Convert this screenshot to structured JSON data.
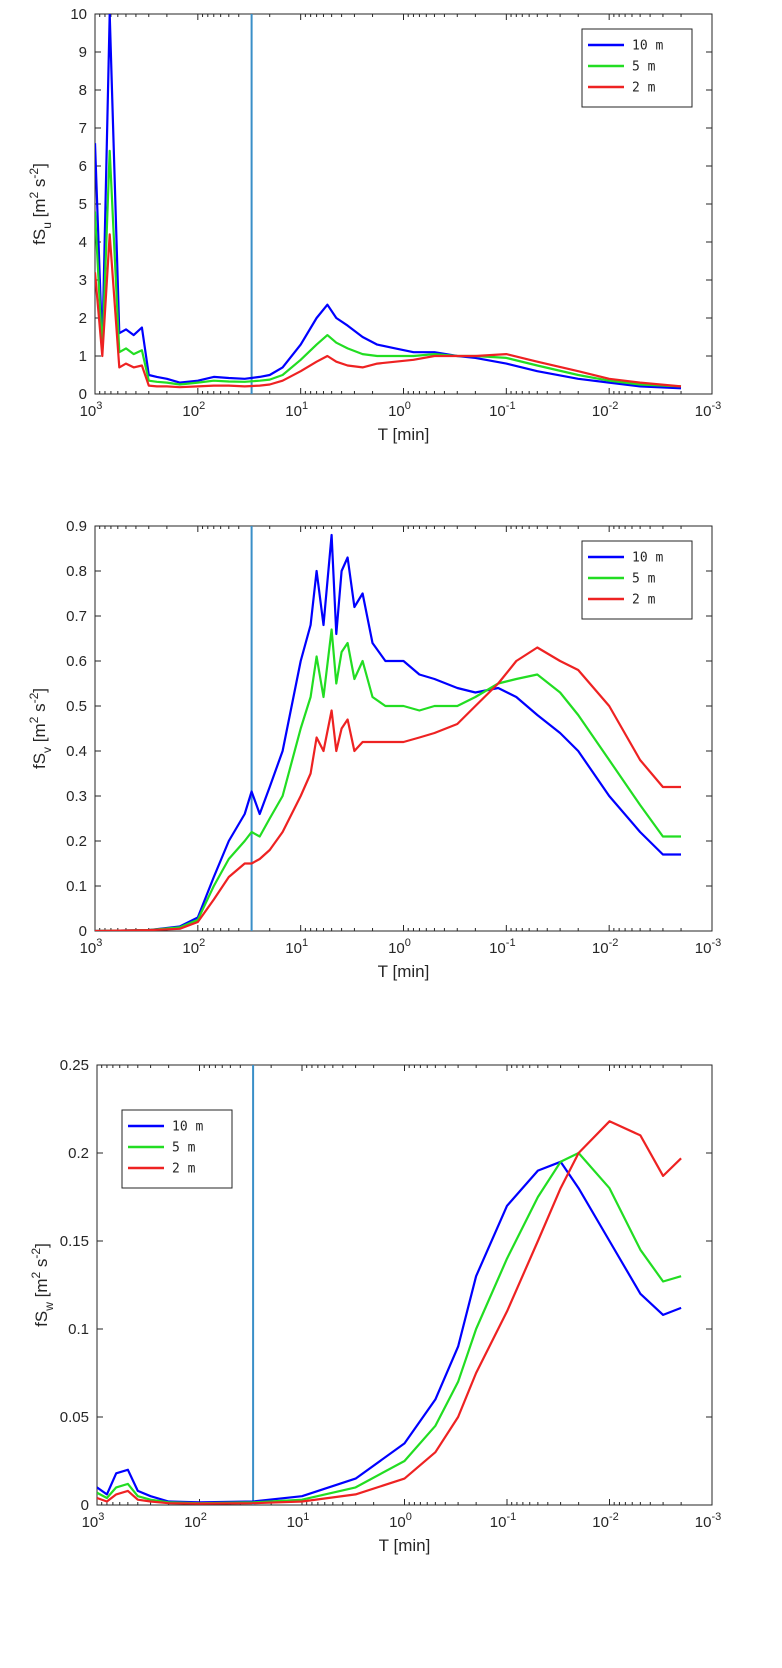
{
  "chart_data": [
    {
      "type": "line",
      "xlabel": "T [min]",
      "ylabel": "fS_u [m^2 s^-2]",
      "ylabel_parts": {
        "base": "fS",
        "sub": "u",
        "units_open": " [m",
        "sup1": "2",
        "mid": " s",
        "sup2": "-2",
        "units_close": "]"
      },
      "x_scale": "log",
      "x_reversed": true,
      "xlim": [
        1000,
        0.001
      ],
      "ylim": [
        0,
        10
      ],
      "yticks": [
        0,
        1,
        2,
        3,
        4,
        5,
        6,
        7,
        8,
        9,
        10
      ],
      "ytick_labels": [
        "0",
        "1",
        "2",
        "3",
        "4",
        "5",
        "6",
        "7",
        "8",
        "9",
        "10"
      ],
      "xticks": [
        {
          "value": 1000,
          "base": "10",
          "exp": "3"
        },
        {
          "value": 100,
          "base": "10",
          "exp": "2"
        },
        {
          "value": 10,
          "base": "10",
          "exp": "1"
        },
        {
          "value": 1,
          "base": "10",
          "exp": "0"
        },
        {
          "value": 0.1,
          "base": "10",
          "exp": "-1"
        },
        {
          "value": 0.01,
          "base": "10",
          "exp": "-2"
        },
        {
          "value": 0.001,
          "base": "10",
          "exp": "-3"
        }
      ],
      "vline_x": 30,
      "legend_position": "top-right",
      "grid": false,
      "series": [
        {
          "name": "10 m",
          "color": "#0000ff",
          "x": [
            1000,
            850,
            720,
            580,
            500,
            420,
            350,
            300,
            250,
            200,
            150,
            100,
            70,
            50,
            35,
            25,
            20,
            15,
            10,
            7,
            5.5,
            4.5,
            3.5,
            2.5,
            1.8,
            1.2,
            0.8,
            0.5,
            0.3,
            0.2,
            0.1,
            0.05,
            0.02,
            0.01,
            0.005,
            0.002
          ],
          "y": [
            6.6,
            1.2,
            10.0,
            1.6,
            1.7,
            1.55,
            1.75,
            0.5,
            0.45,
            0.4,
            0.3,
            0.35,
            0.45,
            0.42,
            0.4,
            0.45,
            0.5,
            0.7,
            1.3,
            2.0,
            2.35,
            2.0,
            1.8,
            1.5,
            1.3,
            1.2,
            1.1,
            1.1,
            1.0,
            0.95,
            0.8,
            0.6,
            0.4,
            0.3,
            0.2,
            0.15
          ]
        },
        {
          "name": "5 m",
          "color": "#22dd22",
          "x": [
            1000,
            850,
            720,
            580,
            500,
            420,
            350,
            300,
            250,
            200,
            150,
            100,
            70,
            50,
            35,
            25,
            20,
            15,
            10,
            7,
            5.5,
            4.5,
            3.5,
            2.5,
            1.8,
            1.2,
            0.8,
            0.5,
            0.3,
            0.2,
            0.1,
            0.05,
            0.02,
            0.01,
            0.005,
            0.002
          ],
          "y": [
            4.8,
            1.1,
            6.4,
            1.1,
            1.2,
            1.05,
            1.15,
            0.35,
            0.32,
            0.3,
            0.25,
            0.3,
            0.35,
            0.33,
            0.32,
            0.35,
            0.38,
            0.5,
            0.9,
            1.3,
            1.55,
            1.35,
            1.2,
            1.05,
            1.0,
            1.0,
            1.0,
            1.05,
            1.0,
            1.0,
            0.95,
            0.75,
            0.5,
            0.35,
            0.25,
            0.2
          ]
        },
        {
          "name": "2 m",
          "color": "#ee2222",
          "x": [
            1000,
            850,
            720,
            580,
            500,
            420,
            350,
            300,
            250,
            200,
            150,
            100,
            70,
            50,
            35,
            25,
            20,
            15,
            10,
            7,
            5.5,
            4.5,
            3.5,
            2.5,
            1.8,
            1.2,
            0.8,
            0.5,
            0.3,
            0.2,
            0.1,
            0.05,
            0.02,
            0.01,
            0.005,
            0.002
          ],
          "y": [
            3.2,
            1.0,
            4.2,
            0.7,
            0.8,
            0.7,
            0.75,
            0.22,
            0.2,
            0.2,
            0.18,
            0.2,
            0.22,
            0.22,
            0.2,
            0.22,
            0.25,
            0.35,
            0.6,
            0.85,
            1.0,
            0.85,
            0.75,
            0.7,
            0.8,
            0.85,
            0.9,
            1.0,
            1.0,
            1.0,
            1.05,
            0.85,
            0.6,
            0.4,
            0.3,
            0.2
          ]
        }
      ]
    },
    {
      "type": "line",
      "xlabel": "T [min]",
      "ylabel": "fS_v [m^2 s^-2]",
      "ylabel_parts": {
        "base": "fS",
        "sub": "v",
        "units_open": " [m",
        "sup1": "2",
        "mid": " s",
        "sup2": "-2",
        "units_close": "]"
      },
      "x_scale": "log",
      "x_reversed": true,
      "xlim": [
        1000,
        0.001
      ],
      "ylim": [
        0,
        0.9
      ],
      "yticks": [
        0,
        0.1,
        0.2,
        0.3,
        0.4,
        0.5,
        0.6,
        0.7,
        0.8,
        0.9
      ],
      "ytick_labels": [
        "0",
        "0.1",
        "0.2",
        "0.3",
        "0.4",
        "0.5",
        "0.6",
        "0.7",
        "0.8",
        "0.9"
      ],
      "xticks": [
        {
          "value": 1000,
          "base": "10",
          "exp": "3"
        },
        {
          "value": 100,
          "base": "10",
          "exp": "2"
        },
        {
          "value": 10,
          "base": "10",
          "exp": "1"
        },
        {
          "value": 1,
          "base": "10",
          "exp": "0"
        },
        {
          "value": 0.1,
          "base": "10",
          "exp": "-1"
        },
        {
          "value": 0.01,
          "base": "10",
          "exp": "-2"
        },
        {
          "value": 0.001,
          "base": "10",
          "exp": "-3"
        }
      ],
      "vline_x": 30,
      "legend_position": "top-right",
      "grid": false,
      "series": [
        {
          "name": "10 m",
          "color": "#0000ff",
          "x": [
            1000,
            300,
            150,
            100,
            70,
            50,
            35,
            30,
            25,
            20,
            15,
            10,
            8,
            7,
            6,
            5,
            4.5,
            4,
            3.5,
            3,
            2.5,
            2,
            1.5,
            1,
            0.7,
            0.5,
            0.3,
            0.2,
            0.12,
            0.08,
            0.05,
            0.03,
            0.02,
            0.01,
            0.005,
            0.003,
            0.002
          ],
          "y": [
            0,
            0.002,
            0.01,
            0.03,
            0.12,
            0.2,
            0.26,
            0.31,
            0.26,
            0.32,
            0.4,
            0.6,
            0.68,
            0.8,
            0.68,
            0.88,
            0.66,
            0.8,
            0.83,
            0.72,
            0.75,
            0.64,
            0.6,
            0.6,
            0.57,
            0.56,
            0.54,
            0.53,
            0.54,
            0.52,
            0.48,
            0.44,
            0.4,
            0.3,
            0.22,
            0.17,
            0.17
          ]
        },
        {
          "name": "5 m",
          "color": "#22dd22",
          "x": [
            1000,
            300,
            150,
            100,
            70,
            50,
            35,
            30,
            25,
            20,
            15,
            10,
            8,
            7,
            6,
            5,
            4.5,
            4,
            3.5,
            3,
            2.5,
            2,
            1.5,
            1,
            0.7,
            0.5,
            0.3,
            0.2,
            0.12,
            0.08,
            0.05,
            0.03,
            0.02,
            0.01,
            0.005,
            0.003,
            0.002
          ],
          "y": [
            0,
            0.002,
            0.008,
            0.025,
            0.1,
            0.16,
            0.2,
            0.22,
            0.21,
            0.25,
            0.3,
            0.45,
            0.52,
            0.61,
            0.52,
            0.67,
            0.55,
            0.62,
            0.64,
            0.56,
            0.6,
            0.52,
            0.5,
            0.5,
            0.49,
            0.5,
            0.5,
            0.52,
            0.55,
            0.56,
            0.57,
            0.53,
            0.48,
            0.38,
            0.28,
            0.21,
            0.21
          ]
        },
        {
          "name": "2 m",
          "color": "#ee2222",
          "x": [
            1000,
            300,
            150,
            100,
            70,
            50,
            35,
            30,
            25,
            20,
            15,
            10,
            8,
            7,
            6,
            5,
            4.5,
            4,
            3.5,
            3,
            2.5,
            2,
            1.5,
            1,
            0.7,
            0.5,
            0.3,
            0.2,
            0.12,
            0.08,
            0.05,
            0.03,
            0.02,
            0.01,
            0.005,
            0.003,
            0.002
          ],
          "y": [
            0,
            0.002,
            0.005,
            0.02,
            0.07,
            0.12,
            0.15,
            0.15,
            0.16,
            0.18,
            0.22,
            0.3,
            0.35,
            0.43,
            0.4,
            0.49,
            0.4,
            0.45,
            0.47,
            0.4,
            0.42,
            0.42,
            0.42,
            0.42,
            0.43,
            0.44,
            0.46,
            0.5,
            0.55,
            0.6,
            0.63,
            0.6,
            0.58,
            0.5,
            0.38,
            0.32,
            0.32
          ]
        }
      ]
    },
    {
      "type": "line",
      "xlabel": "T [min]",
      "ylabel": "fS_w [m^2 s^-2]",
      "ylabel_parts": {
        "base": "fS",
        "sub": "w",
        "units_open": " [m",
        "sup1": "2",
        "mid": " s",
        "sup2": "-2",
        "units_close": "]"
      },
      "x_scale": "log",
      "x_reversed": true,
      "xlim": [
        1000,
        0.001
      ],
      "ylim": [
        0,
        0.25
      ],
      "yticks": [
        0,
        0.05,
        0.1,
        0.15,
        0.2,
        0.25
      ],
      "ytick_labels": [
        "0",
        "0.05",
        "0.1",
        "0.15",
        "0.2",
        "0.25"
      ],
      "xticks": [
        {
          "value": 1000,
          "base": "10",
          "exp": "3"
        },
        {
          "value": 100,
          "base": "10",
          "exp": "2"
        },
        {
          "value": 10,
          "base": "10",
          "exp": "1"
        },
        {
          "value": 1,
          "base": "10",
          "exp": "0"
        },
        {
          "value": 0.1,
          "base": "10",
          "exp": "-1"
        },
        {
          "value": 0.01,
          "base": "10",
          "exp": "-2"
        },
        {
          "value": 0.001,
          "base": "10",
          "exp": "-3"
        }
      ],
      "vline_x": 30,
      "legend_position": "top-left",
      "grid": false,
      "series": [
        {
          "name": "10 m",
          "color": "#0000ff",
          "x": [
            1000,
            800,
            650,
            500,
            400,
            300,
            200,
            100,
            30,
            10,
            3,
            1,
            0.5,
            0.3,
            0.2,
            0.1,
            0.05,
            0.03,
            0.02,
            0.01,
            0.005,
            0.003,
            0.002
          ],
          "y": [
            0.01,
            0.006,
            0.018,
            0.02,
            0.008,
            0.005,
            0.002,
            0.0015,
            0.002,
            0.005,
            0.015,
            0.035,
            0.06,
            0.09,
            0.13,
            0.17,
            0.19,
            0.195,
            0.18,
            0.15,
            0.12,
            0.108,
            0.112
          ]
        },
        {
          "name": "5 m",
          "color": "#22dd22",
          "x": [
            1000,
            800,
            650,
            500,
            400,
            300,
            200,
            100,
            30,
            10,
            3,
            1,
            0.5,
            0.3,
            0.2,
            0.1,
            0.05,
            0.03,
            0.02,
            0.01,
            0.005,
            0.003,
            0.002
          ],
          "y": [
            0.007,
            0.004,
            0.01,
            0.012,
            0.005,
            0.003,
            0.0015,
            0.001,
            0.0015,
            0.003,
            0.01,
            0.025,
            0.045,
            0.07,
            0.1,
            0.14,
            0.175,
            0.195,
            0.2,
            0.18,
            0.145,
            0.127,
            0.13
          ]
        },
        {
          "name": "2 m",
          "color": "#ee2222",
          "x": [
            1000,
            800,
            650,
            500,
            400,
            300,
            200,
            100,
            30,
            10,
            3,
            1,
            0.5,
            0.3,
            0.2,
            0.1,
            0.05,
            0.03,
            0.02,
            0.01,
            0.005,
            0.003,
            0.002
          ],
          "y": [
            0.004,
            0.002,
            0.006,
            0.008,
            0.003,
            0.002,
            0.001,
            0.0008,
            0.001,
            0.002,
            0.006,
            0.015,
            0.03,
            0.05,
            0.075,
            0.11,
            0.15,
            0.18,
            0.2,
            0.218,
            0.21,
            0.187,
            0.197
          ]
        }
      ]
    }
  ]
}
